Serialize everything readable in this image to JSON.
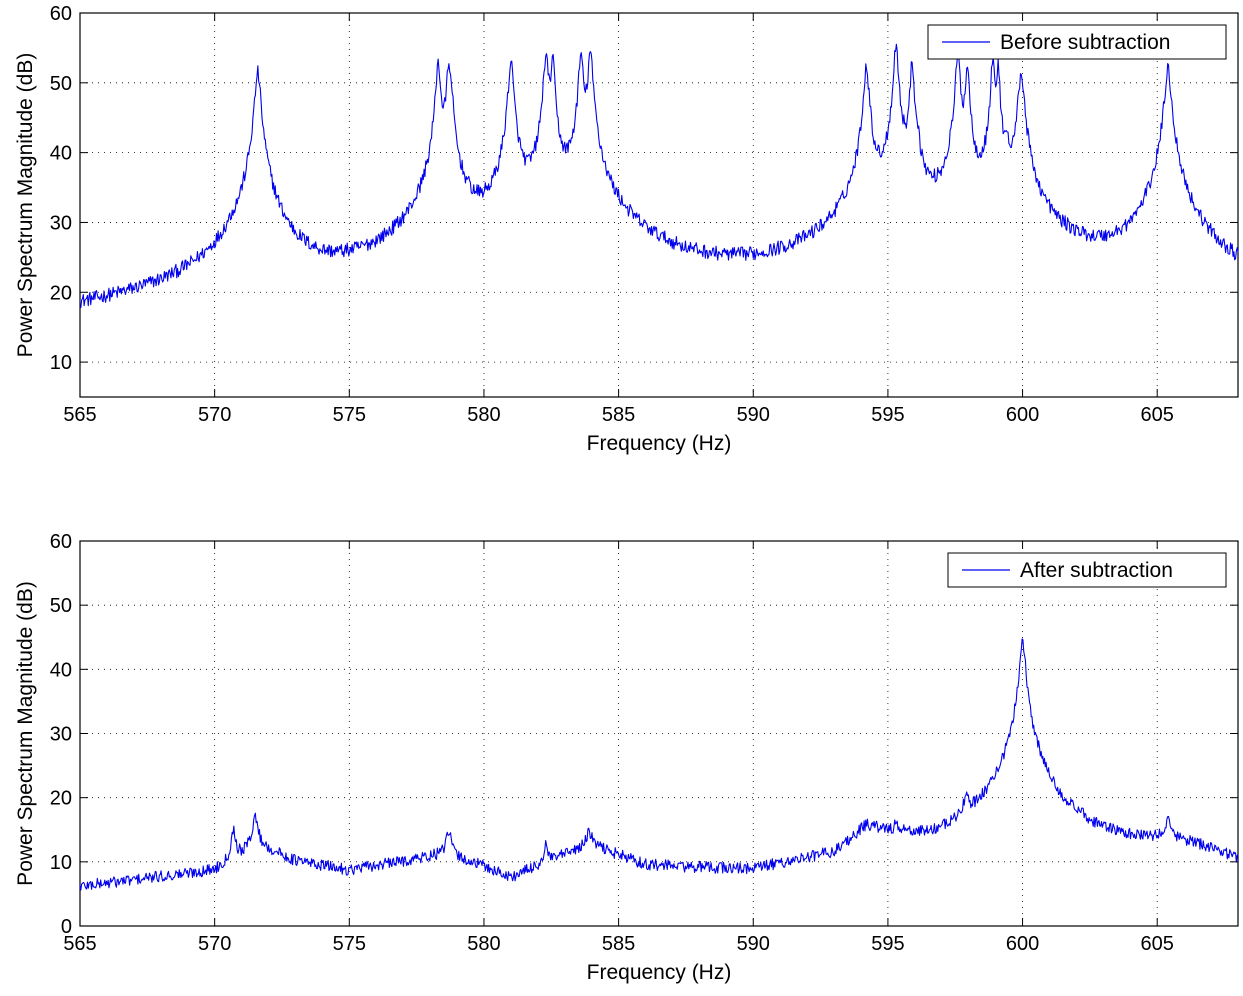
{
  "chart_data": [
    {
      "type": "line",
      "xlabel": "Frequency (Hz)",
      "ylabel": "Power Spectrum Magnitude (dB)",
      "xlim": [
        565,
        608
      ],
      "ylim": [
        5,
        60
      ],
      "xticks": [
        565,
        570,
        575,
        580,
        585,
        590,
        595,
        600,
        605
      ],
      "yticks": [
        10,
        20,
        30,
        40,
        50,
        60
      ],
      "grid": true,
      "legend_position": "top-right",
      "color": "#0000ee",
      "baseline": [
        [
          565,
          10
        ],
        [
          570,
          12
        ],
        [
          572,
          16
        ],
        [
          574,
          13
        ],
        [
          577,
          13.5
        ],
        [
          579.5,
          18
        ],
        [
          581,
          20
        ],
        [
          585,
          16
        ],
        [
          587,
          12.5
        ],
        [
          590,
          11.5
        ],
        [
          593,
          14
        ],
        [
          594,
          20
        ],
        [
          599,
          19
        ],
        [
          601,
          15
        ],
        [
          604,
          16
        ],
        [
          605.3,
          22
        ],
        [
          607,
          16
        ],
        [
          608,
          13
        ]
      ],
      "noise": 1.0,
      "series": [
        {
          "name": "Before subtraction",
          "peaks": [
            {
              "f": 570.6,
              "a": 20,
              "w": 0.1
            },
            {
              "f": 571.6,
              "a": 51.5,
              "w": 0.09
            },
            {
              "f": 578.3,
              "a": 53,
              "w": 0.07
            },
            {
              "f": 578.7,
              "a": 53,
              "w": 0.07
            },
            {
              "f": 578.85,
              "a": 41,
              "w": 0.05
            },
            {
              "f": 581.0,
              "a": 53,
              "w": 0.08
            },
            {
              "f": 582.3,
              "a": 54,
              "w": 0.07
            },
            {
              "f": 582.55,
              "a": 53.5,
              "w": 0.06
            },
            {
              "f": 583.6,
              "a": 54,
              "w": 0.07
            },
            {
              "f": 583.95,
              "a": 54.5,
              "w": 0.07
            },
            {
              "f": 584.15,
              "a": 37,
              "w": 0.05
            },
            {
              "f": 594.2,
              "a": 52.5,
              "w": 0.08
            },
            {
              "f": 595.3,
              "a": 55.5,
              "w": 0.07
            },
            {
              "f": 595.9,
              "a": 53,
              "w": 0.06
            },
            {
              "f": 596.1,
              "a": 40,
              "w": 0.05
            },
            {
              "f": 597.6,
              "a": 54,
              "w": 0.07
            },
            {
              "f": 597.95,
              "a": 52.5,
              "w": 0.06
            },
            {
              "f": 598.9,
              "a": 53.5,
              "w": 0.06
            },
            {
              "f": 599.1,
              "a": 52,
              "w": 0.05
            },
            {
              "f": 599.4,
              "a": 41,
              "w": 0.05
            },
            {
              "f": 599.95,
              "a": 51.5,
              "w": 0.09
            },
            {
              "f": 605.4,
              "a": 52,
              "w": 0.1
            }
          ]
        }
      ]
    },
    {
      "type": "line",
      "xlabel": "Frequency (Hz)",
      "ylabel": "Power Spectrum Magnitude (dB)",
      "xlim": [
        565,
        608
      ],
      "ylim": [
        0,
        60
      ],
      "xticks": [
        565,
        570,
        575,
        580,
        585,
        590,
        595,
        600,
        605
      ],
      "yticks": [
        0,
        10,
        20,
        30,
        40,
        50,
        60
      ],
      "grid": true,
      "legend_position": "top-right",
      "color": "#0000ee",
      "baseline": [
        [
          565,
          6
        ],
        [
          570,
          8.5
        ],
        [
          571.6,
          12.5
        ],
        [
          573,
          10
        ],
        [
          575,
          8.5
        ],
        [
          578.5,
          11
        ],
        [
          580,
          9
        ],
        [
          581,
          7
        ],
        [
          582.5,
          10
        ],
        [
          584,
          12.5
        ],
        [
          586,
          9
        ],
        [
          590,
          7.5
        ],
        [
          593,
          10
        ],
        [
          594.2,
          15
        ],
        [
          596,
          12
        ],
        [
          597,
          10
        ],
        [
          599,
          11
        ],
        [
          601,
          9.5
        ],
        [
          604,
          11
        ],
        [
          605.5,
          12.5
        ],
        [
          607,
          11
        ],
        [
          608,
          9
        ]
      ],
      "noise": 0.9,
      "series": [
        {
          "name": "After subtraction",
          "peaks": [
            {
              "f": 570.7,
              "a": 15,
              "w": 0.08
            },
            {
              "f": 571.5,
              "a": 17,
              "w": 0.1
            },
            {
              "f": 578.7,
              "a": 14.5,
              "w": 0.1
            },
            {
              "f": 582.3,
              "a": 12.5,
              "w": 0.06
            },
            {
              "f": 583.9,
              "a": 14.5,
              "w": 0.1
            },
            {
              "f": 595.3,
              "a": 15,
              "w": 0.06
            },
            {
              "f": 597.9,
              "a": 17.5,
              "w": 0.1
            },
            {
              "f": 598.9,
              "a": 15,
              "w": 0.06
            },
            {
              "f": 600.0,
              "a": 44.5,
              "w": 0.09
            },
            {
              "f": 605.4,
              "a": 17,
              "w": 0.07
            }
          ]
        }
      ]
    }
  ]
}
